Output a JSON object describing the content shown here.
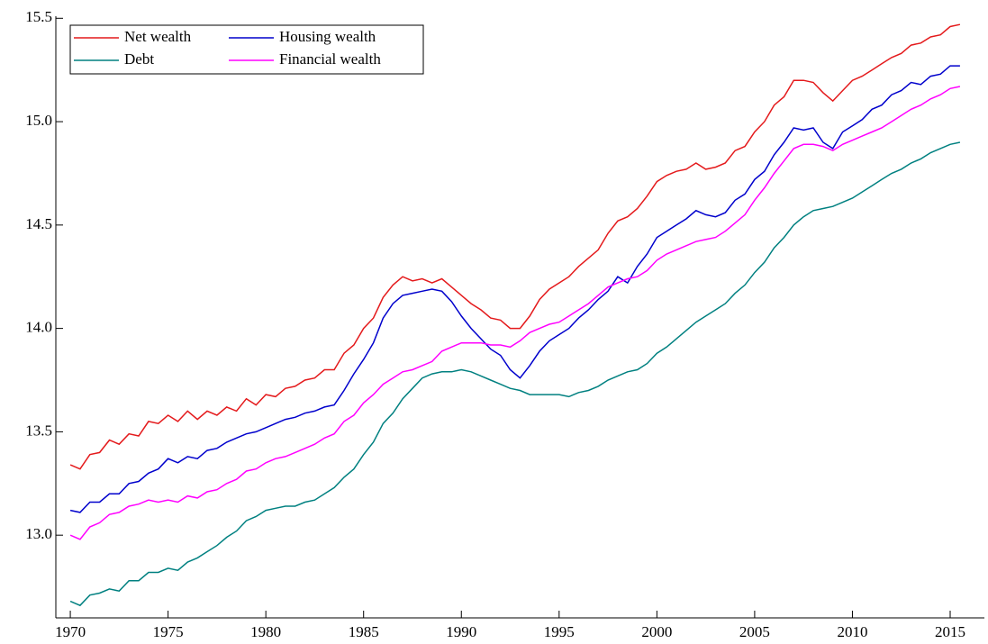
{
  "chart_data": {
    "type": "line",
    "x": [
      1970,
      1970.5,
      1971,
      1971.5,
      1972,
      1972.5,
      1973,
      1973.5,
      1974,
      1974.5,
      1975,
      1975.5,
      1976,
      1976.5,
      1977,
      1977.5,
      1978,
      1978.5,
      1979,
      1979.5,
      1980,
      1980.5,
      1981,
      1981.5,
      1982,
      1982.5,
      1983,
      1983.5,
      1984,
      1984.5,
      1985,
      1985.5,
      1986,
      1986.5,
      1987,
      1987.5,
      1988,
      1988.5,
      1989,
      1989.5,
      1990,
      1990.5,
      1991,
      1991.5,
      1992,
      1992.5,
      1993,
      1993.5,
      1994,
      1994.5,
      1995,
      1995.5,
      1996,
      1996.5,
      1997,
      1997.5,
      1998,
      1998.5,
      1999,
      1999.5,
      2000,
      2000.5,
      2001,
      2001.5,
      2002,
      2002.5,
      2003,
      2003.5,
      2004,
      2004.5,
      2005,
      2005.5,
      2006,
      2006.5,
      2007,
      2007.5,
      2008,
      2008.5,
      2009,
      2009.5,
      2010,
      2010.5,
      2011,
      2011.5,
      2012,
      2012.5,
      2013,
      2013.5,
      2014,
      2014.5,
      2015,
      2015.5
    ],
    "series": [
      {
        "name": "Net wealth",
        "color": "#e41a1c",
        "values": [
          13.34,
          13.32,
          13.39,
          13.4,
          13.46,
          13.44,
          13.49,
          13.48,
          13.55,
          13.54,
          13.58,
          13.55,
          13.6,
          13.56,
          13.6,
          13.58,
          13.62,
          13.6,
          13.66,
          13.63,
          13.68,
          13.67,
          13.71,
          13.72,
          13.75,
          13.76,
          13.8,
          13.8,
          13.88,
          13.92,
          14.0,
          14.05,
          14.15,
          14.21,
          14.25,
          14.23,
          14.24,
          14.22,
          14.24,
          14.2,
          14.16,
          14.12,
          14.09,
          14.05,
          14.04,
          14.0,
          14.0,
          14.06,
          14.14,
          14.19,
          14.22,
          14.25,
          14.3,
          14.34,
          14.38,
          14.46,
          14.52,
          14.54,
          14.58,
          14.64,
          14.71,
          14.74,
          14.76,
          14.77,
          14.8,
          14.77,
          14.78,
          14.8,
          14.86,
          14.88,
          14.95,
          15.0,
          15.08,
          15.12,
          15.2,
          15.2,
          15.19,
          15.14,
          15.1,
          15.15,
          15.2,
          15.22,
          15.25,
          15.28,
          15.31,
          15.33,
          15.37,
          15.38,
          15.41,
          15.42,
          15.46,
          15.47
        ]
      },
      {
        "name": "Housing wealth",
        "color": "#0000cc",
        "values": [
          13.12,
          13.11,
          13.16,
          13.16,
          13.2,
          13.2,
          13.25,
          13.26,
          13.3,
          13.32,
          13.37,
          13.35,
          13.38,
          13.37,
          13.41,
          13.42,
          13.45,
          13.47,
          13.49,
          13.5,
          13.52,
          13.54,
          13.56,
          13.57,
          13.59,
          13.6,
          13.62,
          13.63,
          13.7,
          13.78,
          13.85,
          13.93,
          14.05,
          14.12,
          14.16,
          14.17,
          14.18,
          14.19,
          14.18,
          14.13,
          14.06,
          14.0,
          13.95,
          13.9,
          13.87,
          13.8,
          13.76,
          13.82,
          13.89,
          13.94,
          13.97,
          14.0,
          14.05,
          14.09,
          14.14,
          14.18,
          14.25,
          14.22,
          14.3,
          14.36,
          14.44,
          14.47,
          14.5,
          14.53,
          14.57,
          14.55,
          14.54,
          14.56,
          14.62,
          14.65,
          14.72,
          14.76,
          14.84,
          14.9,
          14.97,
          14.96,
          14.97,
          14.9,
          14.87,
          14.95,
          14.98,
          15.01,
          15.06,
          15.08,
          15.13,
          15.15,
          15.19,
          15.18,
          15.22,
          15.23,
          15.27,
          15.27
        ]
      },
      {
        "name": "Debt",
        "color": "#008080",
        "values": [
          12.68,
          12.66,
          12.71,
          12.72,
          12.74,
          12.73,
          12.78,
          12.78,
          12.82,
          12.82,
          12.84,
          12.83,
          12.87,
          12.89,
          12.92,
          12.95,
          12.99,
          13.02,
          13.07,
          13.09,
          13.12,
          13.13,
          13.14,
          13.14,
          13.16,
          13.17,
          13.2,
          13.23,
          13.28,
          13.32,
          13.39,
          13.45,
          13.54,
          13.59,
          13.66,
          13.71,
          13.76,
          13.78,
          13.79,
          13.79,
          13.8,
          13.79,
          13.77,
          13.75,
          13.73,
          13.71,
          13.7,
          13.68,
          13.68,
          13.68,
          13.68,
          13.67,
          13.69,
          13.7,
          13.72,
          13.75,
          13.77,
          13.79,
          13.8,
          13.83,
          13.88,
          13.91,
          13.95,
          13.99,
          14.03,
          14.06,
          14.09,
          14.12,
          14.17,
          14.21,
          14.27,
          14.32,
          14.39,
          14.44,
          14.5,
          14.54,
          14.57,
          14.58,
          14.59,
          14.61,
          14.63,
          14.66,
          14.69,
          14.72,
          14.75,
          14.77,
          14.8,
          14.82,
          14.85,
          14.87,
          14.89,
          14.9
        ]
      },
      {
        "name": "Financial wealth",
        "color": "#ff00ff",
        "values": [
          13.0,
          12.98,
          13.04,
          13.06,
          13.1,
          13.11,
          13.14,
          13.15,
          13.17,
          13.16,
          13.17,
          13.16,
          13.19,
          13.18,
          13.21,
          13.22,
          13.25,
          13.27,
          13.31,
          13.32,
          13.35,
          13.37,
          13.38,
          13.4,
          13.42,
          13.44,
          13.47,
          13.49,
          13.55,
          13.58,
          13.64,
          13.68,
          13.73,
          13.76,
          13.79,
          13.8,
          13.82,
          13.84,
          13.89,
          13.91,
          13.93,
          13.93,
          13.93,
          13.92,
          13.92,
          13.91,
          13.94,
          13.98,
          14.0,
          14.02,
          14.03,
          14.06,
          14.09,
          14.12,
          14.16,
          14.2,
          14.22,
          14.24,
          14.25,
          14.28,
          14.33,
          14.36,
          14.38,
          14.4,
          14.42,
          14.43,
          14.44,
          14.47,
          14.51,
          14.55,
          14.62,
          14.68,
          14.75,
          14.81,
          14.87,
          14.89,
          14.89,
          14.88,
          14.86,
          14.89,
          14.91,
          14.93,
          14.95,
          14.97,
          15.0,
          15.03,
          15.06,
          15.08,
          15.11,
          15.13,
          15.16,
          15.17
        ]
      }
    ],
    "xlim": [
      1969.26,
      2016.75
    ],
    "xticks": [
      1970,
      1975,
      1980,
      1985,
      1990,
      1995,
      2000,
      2005,
      2010,
      2015
    ],
    "ylim": [
      12.6,
      15.51
    ],
    "yticks": [
      {
        "value": 13,
        "label": "13.0"
      },
      13.5,
      {
        "value": 14,
        "label": "14.0"
      },
      14.5,
      {
        "value": 15,
        "label": "15.0"
      },
      15.5
    ],
    "legend": "upper left"
  }
}
